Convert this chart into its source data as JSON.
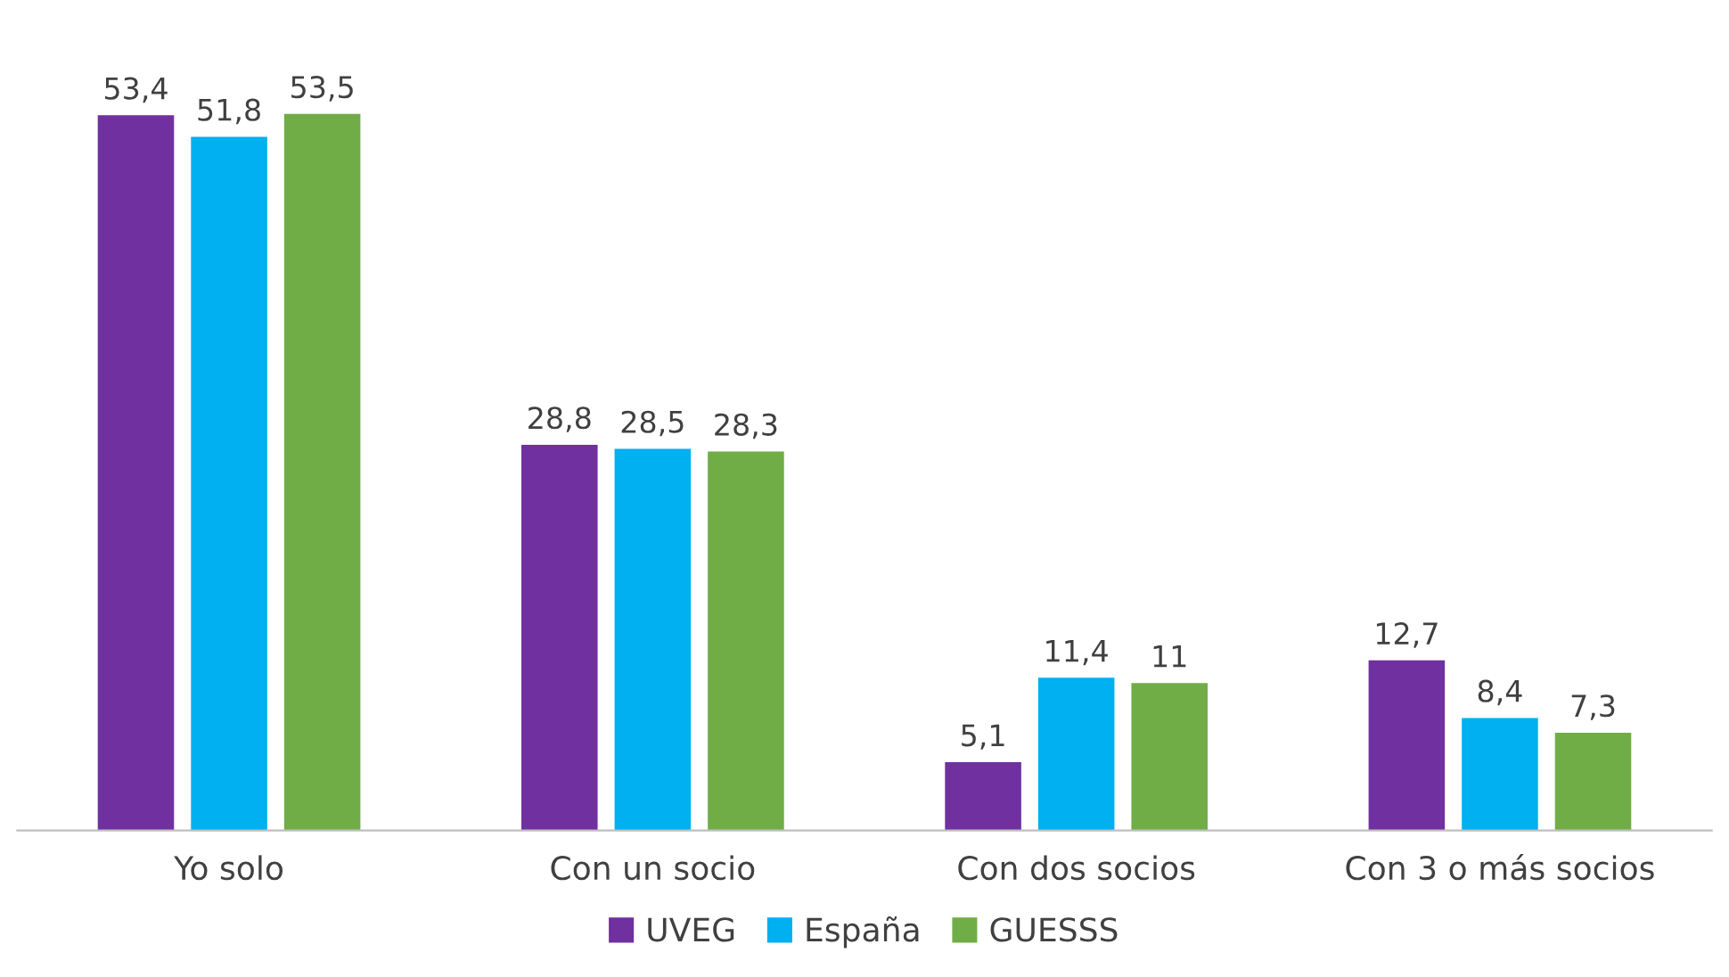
{
  "chart_data": {
    "type": "bar",
    "categories": [
      "Yo solo",
      "Con un socio",
      "Con dos socios",
      "Con 3 o más socios"
    ],
    "series": [
      {
        "name": "UVEG",
        "color": "#7030a0",
        "values": [
          53.4,
          28.8,
          5.1,
          12.7
        ],
        "value_labels": [
          "53,4",
          "28,8",
          "5,1",
          "12,7"
        ]
      },
      {
        "name": "España",
        "color": "#00b0f0",
        "values": [
          51.8,
          28.5,
          11.4,
          8.4
        ],
        "value_labels": [
          "51,8",
          "28,5",
          "11,4",
          "8,4"
        ]
      },
      {
        "name": "GUESSS",
        "color": "#70ad47",
        "values": [
          53.5,
          28.3,
          11,
          7.3
        ],
        "value_labels": [
          "53,5",
          "28,3",
          "11",
          "7,3"
        ]
      }
    ],
    "legend": "bottom"
  }
}
